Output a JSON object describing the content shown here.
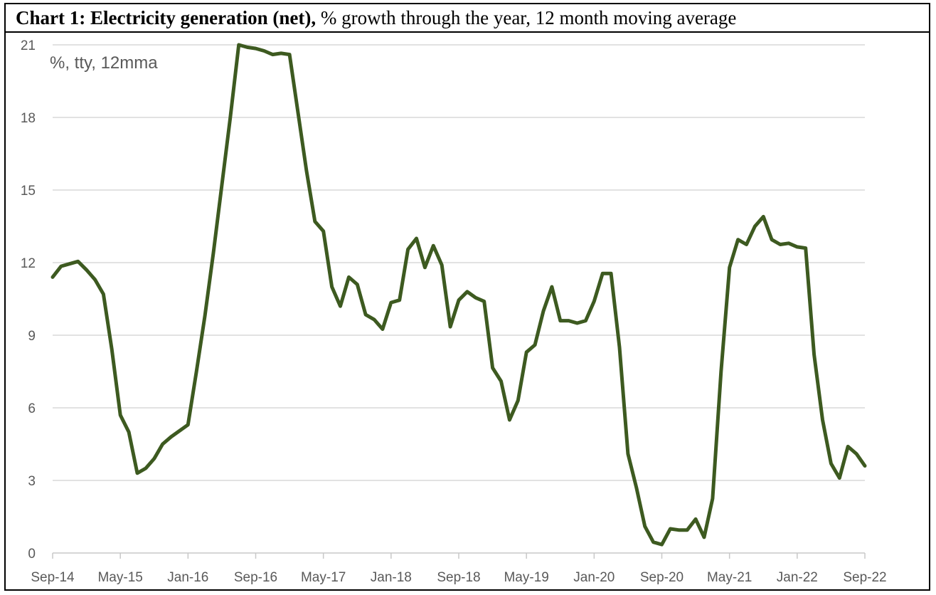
{
  "chart_data": {
    "type": "line",
    "title_bold": "Chart 1: Electricity generation (net),",
    "title_rest": " % growth through the year, 12 month moving average",
    "unit_label": "%, tty, 12mma",
    "ylim": [
      0,
      21
    ],
    "yticks": [
      "0",
      "3",
      "6",
      "9",
      "12",
      "15",
      "18",
      "21"
    ],
    "ytick_values": [
      0,
      3,
      6,
      9,
      12,
      15,
      18,
      21
    ],
    "xtick_labels": [
      "Sep-14",
      "May-15",
      "Jan-16",
      "Sep-16",
      "May-17",
      "Jan-18",
      "Sep-18",
      "May-19",
      "Jan-20",
      "Sep-20",
      "May-21",
      "Jan-22",
      "Sep-22"
    ],
    "xtick_months": [
      0,
      8,
      16,
      24,
      32,
      40,
      48,
      56,
      64,
      72,
      80,
      88,
      96
    ],
    "grid": true,
    "line_color": "#3d5a20",
    "series": [
      {
        "x": [
          "Sep-14",
          "Oct-14",
          "Nov-14",
          "Dec-14",
          "Jan-15",
          "Feb-15",
          "Mar-15",
          "Apr-15",
          "May-15",
          "Jun-15",
          "Jul-15",
          "Aug-15",
          "Sep-15",
          "Oct-15",
          "Nov-15",
          "Dec-15",
          "Jan-16",
          "Feb-16",
          "Mar-16",
          "Apr-16",
          "May-16",
          "Jun-16",
          "Jul-16",
          "Aug-16",
          "Sep-16",
          "Oct-16",
          "Nov-16",
          "Dec-16",
          "Jan-17",
          "Feb-17",
          "Mar-17",
          "Apr-17",
          "May-17",
          "Jun-17",
          "Jul-17",
          "Aug-17",
          "Sep-17",
          "Oct-17",
          "Nov-17",
          "Dec-17",
          "Jan-18",
          "Feb-18",
          "Mar-18",
          "Apr-18",
          "May-18",
          "Jun-18",
          "Jul-18",
          "Aug-18",
          "Sep-18",
          "Oct-18",
          "Nov-18",
          "Dec-18",
          "Jan-19",
          "Feb-19",
          "Mar-19",
          "Apr-19",
          "May-19",
          "Jun-19",
          "Jul-19",
          "Aug-19",
          "Sep-19",
          "Oct-19",
          "Nov-19",
          "Dec-19",
          "Jan-20",
          "Feb-20",
          "Mar-20",
          "Apr-20",
          "May-20",
          "Jun-20",
          "Jul-20",
          "Aug-20",
          "Sep-20",
          "Oct-20",
          "Nov-20",
          "Dec-20",
          "Jan-21",
          "Feb-21",
          "Mar-21",
          "Apr-21",
          "May-21",
          "Jun-21",
          "Jul-21",
          "Aug-21",
          "Sep-21",
          "Oct-21",
          "Nov-21",
          "Dec-21",
          "Jan-22",
          "Feb-22",
          "Mar-22",
          "Apr-22",
          "May-22",
          "Jun-22",
          "Jul-22",
          "Aug-22",
          "Sep-22"
        ],
        "values": [
          11.4,
          11.85,
          11.95,
          12.05,
          11.7,
          11.3,
          10.7,
          8.4,
          5.7,
          5.0,
          3.3,
          3.5,
          3.9,
          4.5,
          4.8,
          5.05,
          5.3,
          7.5,
          9.8,
          12.4,
          15.2,
          18.0,
          21.0,
          20.9,
          20.85,
          20.75,
          20.6,
          20.65,
          20.6,
          18.2,
          15.8,
          13.7,
          13.3,
          11.0,
          10.2,
          11.4,
          11.1,
          9.85,
          9.65,
          9.25,
          10.35,
          10.45,
          12.55,
          13.0,
          11.8,
          12.7,
          11.9,
          9.35,
          10.45,
          10.8,
          10.55,
          10.4,
          7.65,
          7.1,
          5.5,
          6.3,
          8.3,
          8.6,
          10.0,
          11.0,
          9.6,
          9.6,
          9.5,
          9.6,
          10.4,
          11.55,
          11.55,
          8.5,
          4.1,
          2.7,
          1.1,
          0.45,
          0.35,
          1.0,
          0.95,
          0.95,
          1.4,
          0.65,
          2.25,
          7.5,
          11.8,
          12.95,
          12.75,
          13.5,
          13.9,
          12.95,
          12.75,
          12.8,
          12.65,
          12.6,
          8.2,
          5.5,
          3.7,
          3.1,
          4.4,
          4.1,
          3.6
        ]
      }
    ]
  }
}
